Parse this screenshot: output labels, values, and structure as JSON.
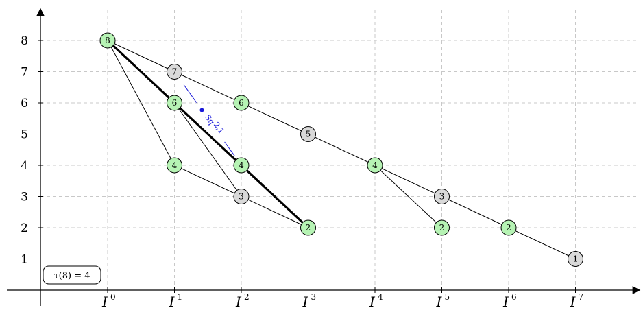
{
  "colors": {
    "green_node": "#b6f3b4",
    "gray_node": "#d9d9d9",
    "annotation": "#1a1ad9"
  },
  "chart_data": {
    "type": "graph",
    "x_ticks": [
      {
        "base": "I",
        "exp": "0"
      },
      {
        "base": "I",
        "exp": "1"
      },
      {
        "base": "I",
        "exp": "2"
      },
      {
        "base": "I",
        "exp": "3"
      },
      {
        "base": "I",
        "exp": "4"
      },
      {
        "base": "I",
        "exp": "5"
      },
      {
        "base": "I",
        "exp": "6"
      },
      {
        "base": "I",
        "exp": "7"
      }
    ],
    "y_ticks": [
      "1",
      "2",
      "3",
      "4",
      "5",
      "6",
      "7",
      "8"
    ],
    "nodes": [
      {
        "id": "a",
        "x": 0,
        "y": 8,
        "label": "8",
        "fill": "green"
      },
      {
        "id": "b",
        "x": 1,
        "y": 7,
        "label": "7",
        "fill": "gray"
      },
      {
        "id": "c",
        "x": 1,
        "y": 6,
        "label": "6",
        "fill": "green"
      },
      {
        "id": "d",
        "x": 1,
        "y": 4,
        "label": "4",
        "fill": "green"
      },
      {
        "id": "e",
        "x": 2,
        "y": 6,
        "label": "6",
        "fill": "green"
      },
      {
        "id": "f",
        "x": 2,
        "y": 4,
        "label": "4",
        "fill": "green"
      },
      {
        "id": "g",
        "x": 2,
        "y": 3,
        "label": "3",
        "fill": "gray"
      },
      {
        "id": "h",
        "x": 3,
        "y": 5,
        "label": "5",
        "fill": "gray"
      },
      {
        "id": "i",
        "x": 3,
        "y": 2,
        "label": "2",
        "fill": "green"
      },
      {
        "id": "j",
        "x": 4,
        "y": 4,
        "label": "4",
        "fill": "green"
      },
      {
        "id": "k",
        "x": 5,
        "y": 3,
        "label": "3",
        "fill": "gray"
      },
      {
        "id": "l",
        "x": 5,
        "y": 2,
        "label": "2",
        "fill": "green"
      },
      {
        "id": "m",
        "x": 6,
        "y": 2,
        "label": "2",
        "fill": "green"
      },
      {
        "id": "n",
        "x": 7,
        "y": 1,
        "label": "1",
        "fill": "gray"
      }
    ],
    "edges": [
      {
        "from": "a",
        "to": "b",
        "bold": false
      },
      {
        "from": "b",
        "to": "e",
        "bold": false
      },
      {
        "from": "e",
        "to": "h",
        "bold": false
      },
      {
        "from": "h",
        "to": "j",
        "bold": false
      },
      {
        "from": "j",
        "to": "k",
        "bold": false
      },
      {
        "from": "k",
        "to": "m",
        "bold": false
      },
      {
        "from": "m",
        "to": "n",
        "bold": false
      },
      {
        "from": "j",
        "to": "l",
        "bold": false
      },
      {
        "from": "a",
        "to": "d",
        "bold": false
      },
      {
        "from": "d",
        "to": "g",
        "bold": false
      },
      {
        "from": "g",
        "to": "i",
        "bold": false
      },
      {
        "from": "c",
        "to": "g",
        "bold": false
      },
      {
        "from": "a",
        "to": "c",
        "bold": true
      },
      {
        "from": "c",
        "to": "f",
        "bold": true
      },
      {
        "from": "f",
        "to": "i",
        "bold": true
      }
    ],
    "annotations": [
      {
        "from": "b",
        "to": "f",
        "label": "Sq",
        "sub": "2,1"
      }
    ],
    "tau_box": "τ(8) = 4"
  }
}
